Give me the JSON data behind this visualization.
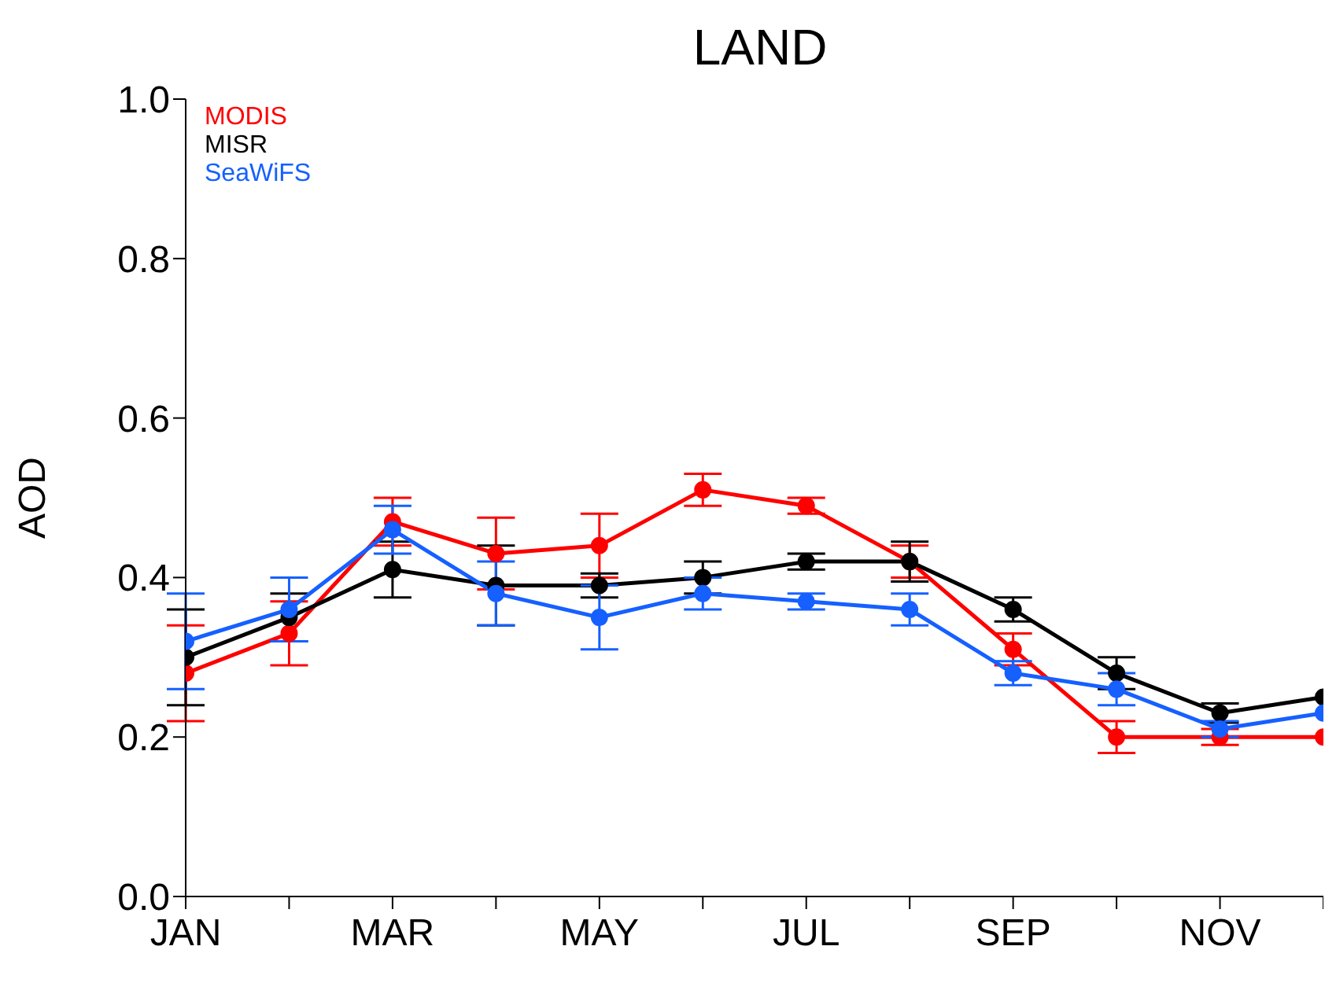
{
  "chart_data": {
    "type": "line",
    "title": "LAND",
    "ylabel": "AOD",
    "categories": [
      "JAN",
      null,
      "MAR",
      null,
      "MAY",
      null,
      "JUL",
      null,
      "SEP",
      null,
      "NOV",
      null
    ],
    "ylim": [
      0,
      1
    ],
    "yticks": [
      {
        "value": 0,
        "label": "0.0"
      },
      {
        "value": 0.2,
        "label": "0.2"
      },
      {
        "value": 0.4,
        "label": "0.4"
      },
      {
        "value": 0.6,
        "label": "0.6"
      },
      {
        "value": 0.8,
        "label": "0.8"
      },
      {
        "value": 1,
        "label": "1.0"
      }
    ],
    "series": [
      {
        "name": "MODIS",
        "color": "#ff0000",
        "values": [
          0.28,
          0.33,
          0.47,
          0.43,
          0.44,
          0.51,
          0.49,
          0.42,
          0.31,
          0.2,
          0.2,
          0.2
        ],
        "errors": [
          0.06,
          0.04,
          0.03,
          0.045,
          0.04,
          0.02,
          0.01,
          0.02,
          0.02,
          0.02,
          0.01,
          null
        ]
      },
      {
        "name": "MISR",
        "color": "#000000",
        "values": [
          0.3,
          0.35,
          0.41,
          0.39,
          0.39,
          0.4,
          0.42,
          0.42,
          0.36,
          0.28,
          0.23,
          0.25
        ],
        "errors": [
          0.06,
          0.03,
          0.035,
          0.05,
          0.015,
          0.02,
          0.01,
          0.025,
          0.015,
          0.02,
          0.012,
          null
        ]
      },
      {
        "name": "SeaWiFS",
        "color": "#1560ff",
        "values": [
          0.32,
          0.36,
          0.46,
          0.38,
          0.35,
          0.38,
          0.37,
          0.36,
          0.28,
          0.26,
          0.21,
          0.23
        ],
        "errors": [
          0.06,
          0.04,
          0.03,
          0.04,
          0.04,
          0.02,
          0.01,
          0.02,
          0.015,
          0.02,
          0.01,
          null
        ]
      }
    ],
    "legend": "top left",
    "marker": "circle",
    "line_style": "solid",
    "grid": false
  }
}
